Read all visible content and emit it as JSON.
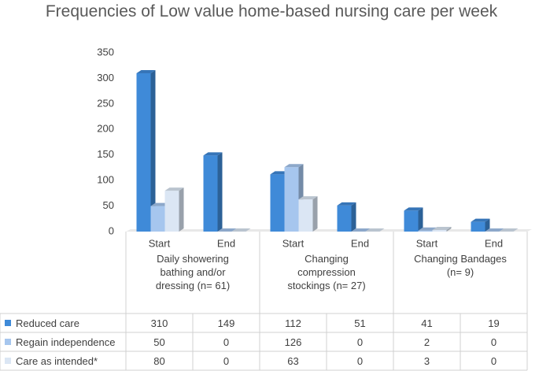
{
  "chart_data": {
    "type": "bar3d",
    "title": "Frequencies of Low value home-based nursing care per week",
    "categories": [
      "Start",
      "End",
      "Start",
      "End",
      "Start",
      "End"
    ],
    "groups": [
      "Daily showering bathing and/or dressing (n= 61)",
      "Changing compression stockings (n= 27)",
      "Changing Bandages (n= 9)"
    ],
    "series": [
      {
        "name": "Reduced care",
        "color": "#3f8ad8",
        "values": [
          310,
          149,
          112,
          51,
          41,
          19
        ]
      },
      {
        "name": "Regain independence",
        "color": "#a6c6ee",
        "values": [
          50,
          0,
          126,
          0,
          2,
          0
        ]
      },
      {
        "name": "Care as intended*",
        "color": "#dbe6f4",
        "values": [
          80,
          0,
          63,
          0,
          3,
          0
        ]
      }
    ],
    "ylim": [
      0,
      350
    ],
    "yticks": [
      0,
      50,
      100,
      150,
      200,
      250,
      300,
      350
    ],
    "grid": false
  }
}
